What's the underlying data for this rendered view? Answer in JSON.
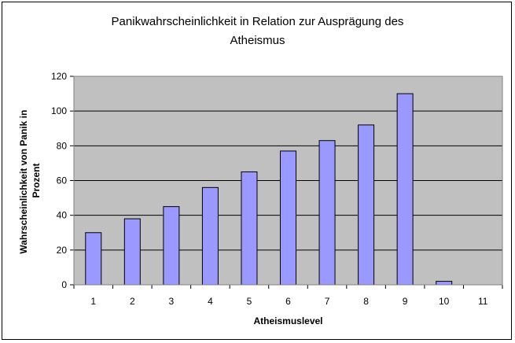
{
  "chart_data": {
    "type": "bar",
    "title_line1": "Panikwahrscheinlichkeit in Relation zur Ausprägung des",
    "title_line2": "Atheismus",
    "xlabel": "Atheismuslevel",
    "ylabel_line1": "Wahrscheinlichkeit von Panik in",
    "ylabel_line2": "Prozent",
    "categories": [
      "1",
      "2",
      "3",
      "4",
      "5",
      "6",
      "7",
      "8",
      "9",
      "10",
      "11"
    ],
    "values": [
      30,
      38,
      45,
      56,
      65,
      77,
      83,
      92,
      110,
      2,
      0
    ],
    "ylim": [
      0,
      120
    ],
    "yticks": [
      "0",
      "20",
      "40",
      "60",
      "80",
      "100",
      "120"
    ],
    "grid": true,
    "legend": "none",
    "colors": {
      "bar_fill": "#9999ff",
      "bar_stroke": "#000000",
      "plot_bg": "#c0c0c0",
      "gridline": "#000000"
    }
  }
}
